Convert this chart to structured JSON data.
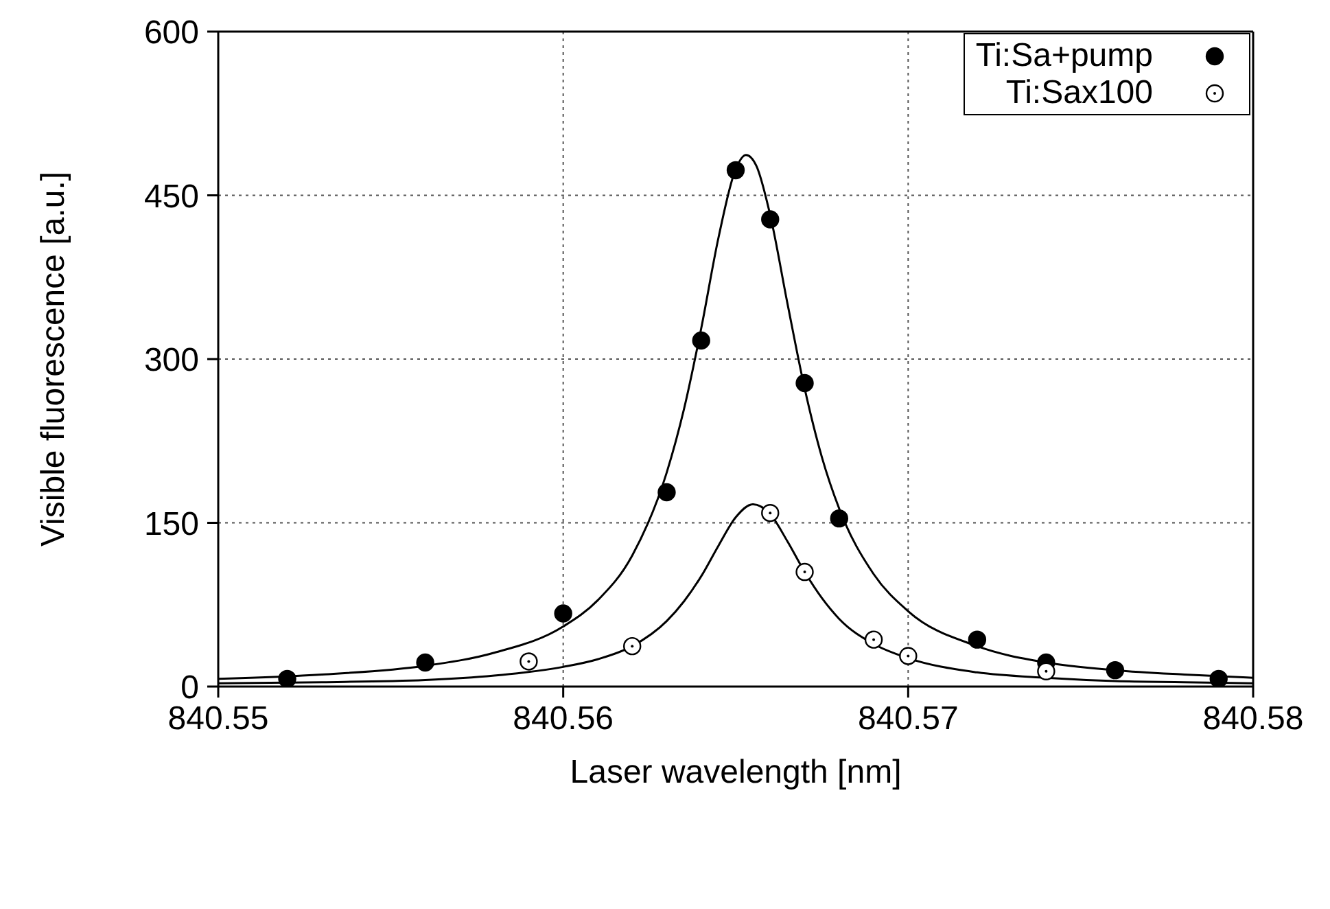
{
  "chart_data": {
    "type": "scatter",
    "xlabel": "Laser wavelength [nm]",
    "ylabel": "Visible fluorescence  [a.u.]",
    "xlim": [
      840.55,
      840.58
    ],
    "xticks": [
      840.55,
      840.56,
      840.57,
      840.58
    ],
    "ylim": [
      0,
      600
    ],
    "yticks": [
      0,
      150,
      300,
      450,
      600
    ],
    "grid": true,
    "legend": "top right",
    "marker": "circle",
    "series": [
      {
        "name": "Ti:Sa+pump",
        "color": "#000000",
        "x": [
          840.552,
          840.556,
          840.56,
          840.563,
          840.564,
          840.565,
          840.566,
          840.567,
          840.568,
          840.572,
          840.574,
          840.576,
          840.579
        ],
        "values": [
          7,
          22,
          67,
          178,
          317,
          473,
          428,
          278,
          154,
          43,
          22,
          15,
          7
        ]
      },
      {
        "name": "Ti:Sax100",
        "color": "#ffffff",
        "x": [
          840.559,
          840.562,
          840.566,
          840.567,
          840.569,
          840.57,
          840.574
        ],
        "values": [
          23,
          37,
          159,
          105,
          43,
          28,
          14
        ]
      },
      {
        "type": "line",
        "color": "#000000",
        "marker": "none",
        "x": [
          840.55,
          840.553,
          840.556,
          840.558,
          840.56,
          840.561,
          840.562,
          840.563,
          840.5635,
          840.564,
          840.5645,
          840.565,
          840.5653,
          840.5656,
          840.566,
          840.5665,
          840.567,
          840.5675,
          840.568,
          840.569,
          840.57,
          840.572,
          840.574,
          840.576,
          840.578,
          840.58
        ],
        "values": [
          7,
          11,
          19,
          31,
          55,
          79,
          120,
          196,
          254,
          328,
          411,
          474,
          487,
          477,
          432,
          351,
          273,
          210,
          163,
          103,
          69,
          37,
          22,
          15,
          11,
          8
        ]
      },
      {
        "type": "line",
        "color": "#000000",
        "marker": "none",
        "x": [
          840.55,
          840.553,
          840.556,
          840.558,
          840.56,
          840.561,
          840.562,
          840.563,
          840.5635,
          840.564,
          840.5645,
          840.565,
          840.5655,
          840.566,
          840.5665,
          840.567,
          840.5675,
          840.568,
          840.569,
          840.57,
          840.572,
          840.574,
          840.576,
          840.578,
          840.58
        ],
        "values": [
          3,
          4,
          6,
          10,
          18,
          25,
          37,
          60,
          78,
          101,
          129,
          155,
          167,
          158,
          133,
          105,
          81,
          62,
          39,
          26,
          13,
          8,
          5,
          4,
          3
        ]
      }
    ]
  }
}
